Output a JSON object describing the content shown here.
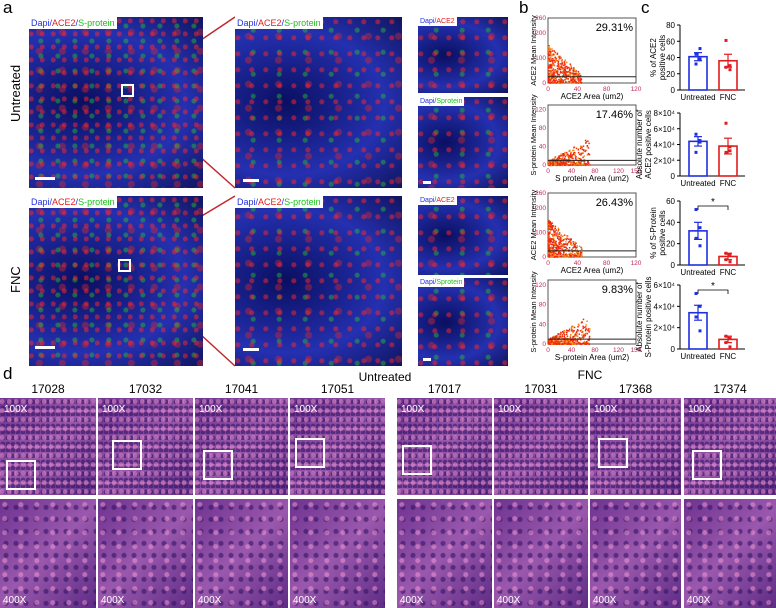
{
  "panel_labels": {
    "a": "a",
    "b": "b",
    "c": "c",
    "d": "d"
  },
  "panel_a": {
    "row_labels": [
      "Untreated",
      "FNC"
    ],
    "channels_full": {
      "dapi": "Dapi",
      "sep1": "/",
      "ace2": "ACE2",
      "sep2": "/",
      "sprot": "S-protein"
    },
    "channels_ace2": {
      "dapi": "Dapi",
      "sep": "/",
      "ace2": "ACE2"
    },
    "channels_sprot": {
      "dapi": "Dapi",
      "sep": "/",
      "sprot": "Sprotein"
    },
    "colors": {
      "dapi": "#1f2ee0",
      "ace2": "#e01c1c",
      "sprot": "#18c018",
      "zoom_line": "#c0282d"
    }
  },
  "panel_d": {
    "group_labels": [
      "Untreated",
      "FNC"
    ],
    "samples": [
      "17028",
      "17032",
      "17041",
      "17051",
      "17017",
      "17031",
      "17368",
      "17374"
    ],
    "mag_low": "100X",
    "mag_high": "400X"
  },
  "chart_data": [
    {
      "type": "scatter",
      "panel": "b",
      "percent": "29.31%",
      "xlabel": "ACE2 Area (um2)",
      "ylabel": "ACE2 Mean Intensity",
      "xlim": [
        0,
        120
      ],
      "xticks": [
        0,
        40,
        80,
        120
      ],
      "ylim": [
        0,
        260
      ],
      "yticks": [
        0,
        100,
        200,
        260
      ],
      "threshold": 25
    },
    {
      "type": "scatter",
      "panel": "b",
      "percent": "17.46%",
      "xlabel": "S protein Area (um2)",
      "ylabel": "S-protein Mean Intensity",
      "xlim": [
        0,
        150
      ],
      "xticks": [
        0,
        40,
        80,
        120,
        150
      ],
      "ylim": [
        0,
        130
      ],
      "yticks": [
        0,
        40,
        80,
        120
      ],
      "threshold": 10
    },
    {
      "type": "scatter",
      "panel": "b",
      "percent": "26.43%",
      "xlabel": "ACE2 Area (um2)",
      "ylabel": "ACE2 Mean Intensity",
      "xlim": [
        0,
        120
      ],
      "xticks": [
        0,
        40,
        80,
        120
      ],
      "ylim": [
        0,
        260
      ],
      "yticks": [
        0,
        100,
        200,
        260
      ],
      "threshold": 25
    },
    {
      "type": "scatter",
      "panel": "b",
      "percent": "9.83%",
      "xlabel": "S-protein Area (um2)",
      "ylabel": "S-protein Mean Intensity",
      "xlim": [
        0,
        150
      ],
      "xticks": [
        0,
        40,
        80,
        120,
        150
      ],
      "ylim": [
        0,
        130
      ],
      "yticks": [
        0,
        40,
        80,
        120
      ],
      "threshold": 10
    },
    {
      "type": "bar",
      "panel": "c",
      "ylabel": [
        "% of ACE2",
        "positive cells"
      ],
      "categories": [
        "Untreated",
        "FNC"
      ],
      "ylim": [
        0,
        80
      ],
      "yticks": [
        "0",
        "20",
        "40",
        "60",
        "80"
      ],
      "means": [
        41,
        36
      ],
      "sem": [
        5,
        8
      ],
      "points": [
        [
          44,
          38,
          32,
          51
        ],
        [
          61,
          30,
          28,
          25
        ]
      ],
      "significance": "",
      "colors": [
        "#1f2ee0",
        "#e01c1c"
      ]
    },
    {
      "type": "bar",
      "panel": "c",
      "ylabel": [
        "Absolute number of",
        "ACE2 positive cells"
      ],
      "categories": [
        "Untreated",
        "FNC"
      ],
      "ylim": [
        0,
        80000
      ],
      "yticks": [
        "0",
        "2×10⁴",
        "4×10⁴",
        "6×10⁴",
        "8×10⁴"
      ],
      "means": [
        44000,
        38000
      ],
      "sem": [
        6000,
        10000
      ],
      "points": [
        [
          53000,
          43000,
          30000,
          45000
        ],
        [
          67000,
          32000,
          30000,
          37000
        ]
      ],
      "significance": "",
      "colors": [
        "#1f2ee0",
        "#e01c1c"
      ]
    },
    {
      "type": "bar",
      "panel": "c",
      "ylabel": [
        "% of S-Protein",
        "positive cells"
      ],
      "categories": [
        "Untreated",
        "FNC"
      ],
      "ylim": [
        0,
        60
      ],
      "yticks": [
        "0",
        "20",
        "40",
        "60"
      ],
      "means": [
        32,
        8
      ],
      "sem": [
        8,
        3
      ],
      "points": [
        [
          52,
          35,
          25,
          18
        ],
        [
          11,
          10,
          5,
          3
        ]
      ],
      "significance": "*",
      "colors": [
        "#1f2ee0",
        "#e01c1c"
      ]
    },
    {
      "type": "bar",
      "panel": "c",
      "ylabel": [
        "Absolute number of",
        "S-Protein positive cells"
      ],
      "categories": [
        "Untreated",
        "FNC"
      ],
      "ylim": [
        0,
        60000
      ],
      "yticks": [
        "0",
        "2×10⁴",
        "4×10⁴",
        "6×10⁴"
      ],
      "means": [
        34000,
        9000
      ],
      "sem": [
        7000,
        3000
      ],
      "points": [
        [
          52000,
          40000,
          30000,
          17000
        ],
        [
          12000,
          10000,
          6000,
          2000
        ]
      ],
      "significance": "*",
      "colors": [
        "#1f2ee0",
        "#e01c1c"
      ]
    }
  ]
}
